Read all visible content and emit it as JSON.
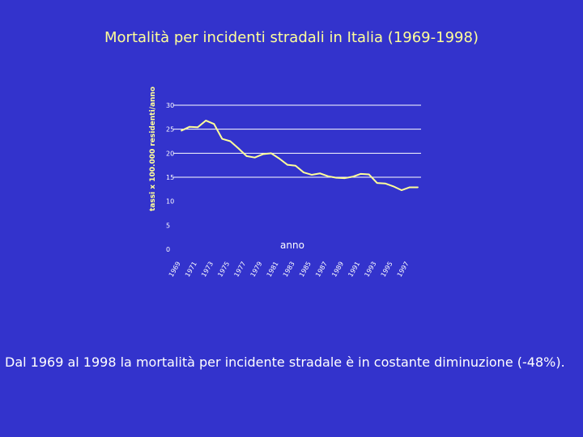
{
  "slide": {
    "title": "Mortalità per incidenti stradali in Italia (1969-1998)",
    "caption": "Dal 1969 al 1998 la mortalità per incidente stradale è in costante diminuzione (-48%)."
  },
  "colors": {
    "background": "#3333cc",
    "title": "#ffff99",
    "line": "#ffff99",
    "grid": "#ffffff",
    "text": "#ffffff"
  },
  "chart_data": {
    "type": "line",
    "title": "Mortalità per incidenti stradali in Italia (1969-1998)",
    "xlabel": "anno",
    "ylabel": "tassi x 100.000 residenti/anno",
    "ylim": [
      0,
      30
    ],
    "yticks": [
      0,
      5,
      10,
      15,
      20,
      25,
      30
    ],
    "grid": "horizontal, at 15-30",
    "x": [
      1969,
      1970,
      1971,
      1972,
      1973,
      1974,
      1975,
      1976,
      1977,
      1978,
      1979,
      1980,
      1981,
      1982,
      1983,
      1984,
      1985,
      1986,
      1987,
      1988,
      1989,
      1990,
      1991,
      1992,
      1993,
      1994,
      1995,
      1996,
      1997,
      1998
    ],
    "xtick_labels": [
      "1969",
      "1971",
      "1973",
      "1975",
      "1977",
      "1979",
      "1981",
      "1983",
      "1985",
      "1987",
      "1989",
      "1991",
      "1993",
      "1995",
      "1997"
    ],
    "series": [
      {
        "values": [
          24.7,
          25.5,
          25.4,
          26.8,
          26.1,
          23.0,
          22.5,
          21.0,
          19.4,
          19.1,
          19.8,
          20.0,
          18.9,
          17.6,
          17.4,
          16.0,
          15.5,
          15.8,
          15.2,
          14.9,
          14.8,
          15.1,
          15.7,
          15.6,
          13.8,
          13.7,
          13.1,
          12.3,
          12.9,
          12.9
        ]
      }
    ]
  }
}
